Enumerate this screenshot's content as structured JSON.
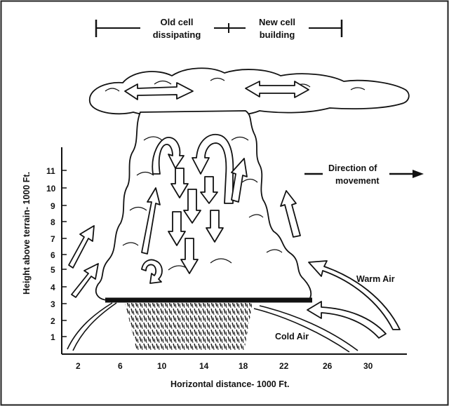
{
  "header": {
    "old_cell_line1": "Old cell",
    "old_cell_line2": "dissipating",
    "new_cell_line1": "New cell",
    "new_cell_line2": "building"
  },
  "axes": {
    "x_title": "Horizontal distance- 1000 Ft.",
    "y_title": "Height above terrain- 1000 Ft.",
    "x_ticks": [
      "2",
      "6",
      "10",
      "14",
      "18",
      "22",
      "26",
      "30"
    ],
    "y_ticks": [
      "1",
      "2",
      "3",
      "4",
      "5",
      "6",
      "7",
      "8",
      "9",
      "10",
      "11"
    ]
  },
  "annotations": {
    "direction_line1": "Direction of",
    "direction_line2": "movement",
    "warm_air": "Warm Air",
    "cold_air": "Cold Air"
  }
}
